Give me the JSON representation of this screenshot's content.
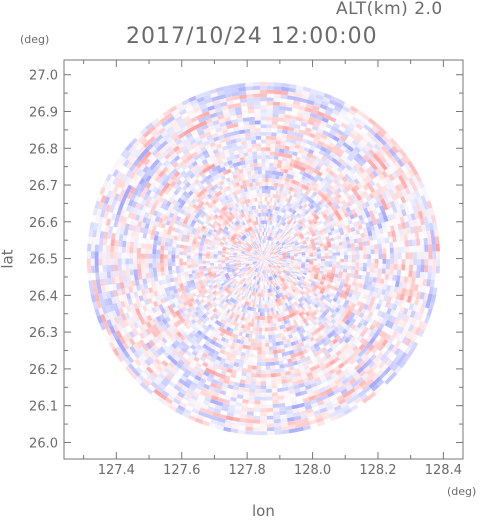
{
  "header": {
    "altitude": "ALT(km)  2.0",
    "datetime": "2017/10/24 12:00:00"
  },
  "chart_data": {
    "type": "heatmap",
    "title": "2017/10/24 12:00:00",
    "subtitle": "ALT(km)  2.0",
    "xlabel": "lon",
    "ylabel": "lat",
    "xunit": "(deg)",
    "yunit": "(deg)",
    "xlim": [
      127.24,
      128.46
    ],
    "ylim": [
      25.955,
      27.04
    ],
    "x_ticks": [
      "127.4",
      "127.6",
      "127.8",
      "128.0",
      "128.2",
      "128.4"
    ],
    "y_ticks": [
      "26.0",
      "26.1",
      "26.2",
      "26.3",
      "26.4",
      "26.5",
      "26.6",
      "26.7",
      "26.8",
      "26.9",
      "27.0"
    ],
    "center": {
      "lon": 127.85,
      "lat": 26.5
    },
    "radius_deg": 0.54,
    "colormap": {
      "negative": "#9aa0ff",
      "zero": "#ffffff",
      "positive": "#ff9a9a"
    },
    "grid": false
  }
}
